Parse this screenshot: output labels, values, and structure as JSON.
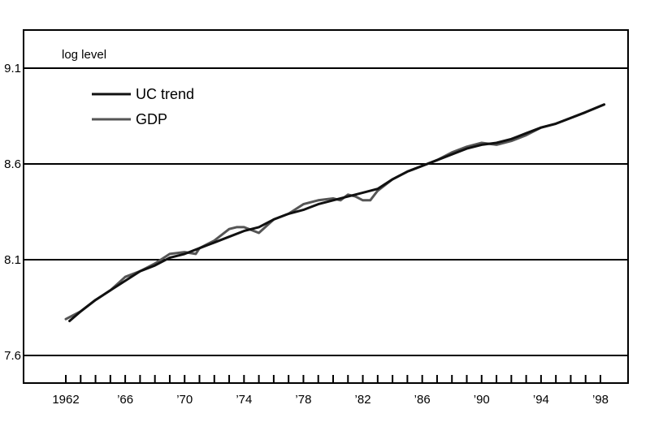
{
  "chart_data": {
    "type": "line",
    "ylabel": "log level",
    "ylim": [
      7.6,
      9.1
    ],
    "yticks": [
      "9.1",
      "8.6",
      "8.1",
      "7.6"
    ],
    "xlim": [
      1961.5,
      1999
    ],
    "xticks": [
      {
        "year": 1962,
        "label": "1962"
      },
      {
        "year": 1966,
        "label": "’66"
      },
      {
        "year": 1970,
        "label": "’70"
      },
      {
        "year": 1974,
        "label": "’74"
      },
      {
        "year": 1978,
        "label": "’78"
      },
      {
        "year": 1982,
        "label": "’82"
      },
      {
        "year": 1986,
        "label": "’86"
      },
      {
        "year": 1990,
        "label": "’90"
      },
      {
        "year": 1994,
        "label": "’94"
      },
      {
        "year": 1998,
        "label": "’98"
      }
    ],
    "grid": true,
    "legend_position": "top-left",
    "series": [
      {
        "name": "UC trend",
        "color": "#111111",
        "x": [
          1962.25,
          1963,
          1964,
          1965,
          1966,
          1967,
          1968,
          1969,
          1970,
          1971,
          1972,
          1973,
          1974,
          1975,
          1976,
          1977,
          1978,
          1979,
          1980,
          1981,
          1981.5,
          1982,
          1983,
          1984,
          1985,
          1986,
          1987,
          1988,
          1989,
          1990,
          1991,
          1992,
          1993,
          1994,
          1995,
          1996,
          1997,
          1998.25
        ],
        "y": [
          7.78,
          7.83,
          7.89,
          7.94,
          7.99,
          8.04,
          8.07,
          8.11,
          8.13,
          8.16,
          8.19,
          8.22,
          8.25,
          8.27,
          8.31,
          8.34,
          8.36,
          8.39,
          8.41,
          8.43,
          8.44,
          8.45,
          8.47,
          8.52,
          8.56,
          8.59,
          8.62,
          8.65,
          8.68,
          8.7,
          8.71,
          8.73,
          8.76,
          8.79,
          8.81,
          8.84,
          8.87,
          8.91
        ]
      },
      {
        "name": "GDP",
        "color": "#555555",
        "x": [
          1962,
          1962.5,
          1963,
          1964,
          1965,
          1966,
          1967,
          1968,
          1969,
          1970,
          1970.75,
          1971,
          1972,
          1973,
          1973.5,
          1974,
          1975,
          1976,
          1977,
          1978,
          1979,
          1980,
          1980.5,
          1981,
          1981.5,
          1982,
          1982.5,
          1983,
          1984,
          1985,
          1986,
          1987,
          1988,
          1989,
          1990,
          1991,
          1992,
          1993,
          1994,
          1995,
          1996,
          1997,
          1998.25
        ],
        "y": [
          7.79,
          7.81,
          7.83,
          7.89,
          7.94,
          8.01,
          8.04,
          8.08,
          8.13,
          8.14,
          8.13,
          8.16,
          8.2,
          8.26,
          8.27,
          8.27,
          8.24,
          8.31,
          8.34,
          8.39,
          8.41,
          8.42,
          8.41,
          8.44,
          8.43,
          8.41,
          8.41,
          8.46,
          8.52,
          8.56,
          8.59,
          8.62,
          8.66,
          8.69,
          8.71,
          8.7,
          8.72,
          8.75,
          8.79,
          8.81,
          8.84,
          8.87,
          8.91
        ]
      }
    ]
  }
}
